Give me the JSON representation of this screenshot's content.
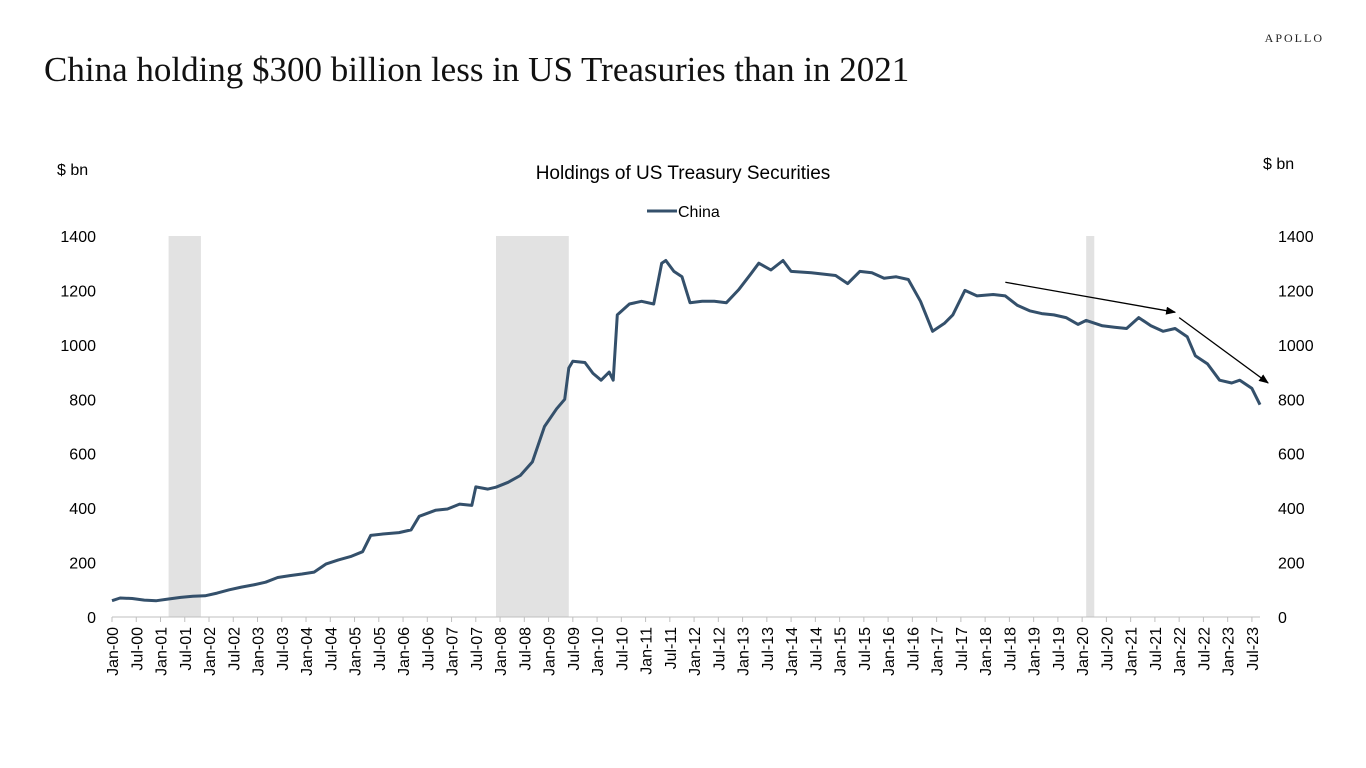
{
  "brand": "APOLLO",
  "headline": "China holding $300 billion less in US Treasuries than in 2021",
  "colors": {
    "series": "#34506b",
    "recession": "#e2e2e2",
    "axis": "#bfbfbf",
    "arrow": "#000000"
  },
  "chart_data": {
    "type": "line",
    "title": "Holdings of US Treasury Securities",
    "ylabel_left": "$ bn",
    "ylabel_right": "$ bn",
    "ylim": [
      0,
      1400
    ],
    "yticks": [
      0,
      200,
      400,
      600,
      800,
      1000,
      1200,
      1400
    ],
    "legend_position": "top-center",
    "grid": false,
    "x_tick_labels": [
      "Jan-00",
      "Jul-00",
      "Jan-01",
      "Jul-01",
      "Jan-02",
      "Jul-02",
      "Jan-03",
      "Jul-03",
      "Jan-04",
      "Jul-04",
      "Jan-05",
      "Jul-05",
      "Jan-06",
      "Jul-06",
      "Jan-07",
      "Jul-07",
      "Jan-08",
      "Jul-08",
      "Jan-09",
      "Jul-09",
      "Jan-10",
      "Jul-10",
      "Jan-11",
      "Jul-11",
      "Jan-12",
      "Jul-12",
      "Jan-13",
      "Jul-13",
      "Jan-14",
      "Jul-14",
      "Jan-15",
      "Jul-15",
      "Jan-16",
      "Jul-16",
      "Jan-17",
      "Jul-17",
      "Jan-18",
      "Jul-18",
      "Jan-19",
      "Jul-19",
      "Jan-20",
      "Jul-20",
      "Jan-21",
      "Jul-21",
      "Jan-22",
      "Jul-22",
      "Jan-23",
      "Jul-23"
    ],
    "recession_bands": [
      {
        "start": "2001-03",
        "end": "2001-11"
      },
      {
        "start": "2007-12",
        "end": "2009-06"
      },
      {
        "start": "2020-02",
        "end": "2020-04"
      }
    ],
    "series": [
      {
        "name": "China",
        "points": [
          [
            "2000-01",
            60
          ],
          [
            "2000-03",
            70
          ],
          [
            "2000-06",
            68
          ],
          [
            "2000-09",
            62
          ],
          [
            "2000-12",
            60
          ],
          [
            "2001-03",
            66
          ],
          [
            "2001-06",
            72
          ],
          [
            "2001-09",
            76
          ],
          [
            "2001-12",
            78
          ],
          [
            "2002-03",
            88
          ],
          [
            "2002-06",
            100
          ],
          [
            "2002-09",
            110
          ],
          [
            "2002-12",
            118
          ],
          [
            "2003-03",
            128
          ],
          [
            "2003-06",
            145
          ],
          [
            "2003-09",
            152
          ],
          [
            "2003-12",
            158
          ],
          [
            "2004-03",
            165
          ],
          [
            "2004-06",
            195
          ],
          [
            "2004-09",
            210
          ],
          [
            "2004-12",
            222
          ],
          [
            "2005-03",
            240
          ],
          [
            "2005-05",
            300
          ],
          [
            "2005-08",
            305
          ],
          [
            "2005-12",
            310
          ],
          [
            "2006-03",
            320
          ],
          [
            "2006-05",
            370
          ],
          [
            "2006-09",
            392
          ],
          [
            "2006-12",
            397
          ],
          [
            "2007-03",
            415
          ],
          [
            "2007-06",
            410
          ],
          [
            "2007-07",
            478
          ],
          [
            "2007-10",
            470
          ],
          [
            "2007-12",
            477
          ],
          [
            "2008-03",
            495
          ],
          [
            "2008-06",
            520
          ],
          [
            "2008-09",
            570
          ],
          [
            "2008-12",
            700
          ],
          [
            "2009-03",
            765
          ],
          [
            "2009-05",
            800
          ],
          [
            "2009-06",
            915
          ],
          [
            "2009-07",
            940
          ],
          [
            "2009-10",
            935
          ],
          [
            "2009-12",
            895
          ],
          [
            "2010-02",
            870
          ],
          [
            "2010-04",
            900
          ],
          [
            "2010-05",
            870
          ],
          [
            "2010-06",
            1110
          ],
          [
            "2010-09",
            1150
          ],
          [
            "2010-12",
            1160
          ],
          [
            "2011-03",
            1150
          ],
          [
            "2011-05",
            1300
          ],
          [
            "2011-06",
            1310
          ],
          [
            "2011-08",
            1270
          ],
          [
            "2011-10",
            1250
          ],
          [
            "2011-12",
            1155
          ],
          [
            "2012-03",
            1160
          ],
          [
            "2012-06",
            1160
          ],
          [
            "2012-09",
            1155
          ],
          [
            "2012-12",
            1202
          ],
          [
            "2013-03",
            1260
          ],
          [
            "2013-05",
            1300
          ],
          [
            "2013-08",
            1275
          ],
          [
            "2013-11",
            1310
          ],
          [
            "2014-01",
            1270
          ],
          [
            "2014-06",
            1265
          ],
          [
            "2014-12",
            1255
          ],
          [
            "2015-03",
            1225
          ],
          [
            "2015-06",
            1270
          ],
          [
            "2015-09",
            1265
          ],
          [
            "2015-12",
            1245
          ],
          [
            "2016-03",
            1250
          ],
          [
            "2016-06",
            1240
          ],
          [
            "2016-09",
            1160
          ],
          [
            "2016-12",
            1050
          ],
          [
            "2017-03",
            1080
          ],
          [
            "2017-05",
            1110
          ],
          [
            "2017-08",
            1200
          ],
          [
            "2017-11",
            1180
          ],
          [
            "2018-03",
            1185
          ],
          [
            "2018-06",
            1180
          ],
          [
            "2018-09",
            1145
          ],
          [
            "2018-12",
            1125
          ],
          [
            "2019-03",
            1115
          ],
          [
            "2019-06",
            1110
          ],
          [
            "2019-09",
            1100
          ],
          [
            "2019-12",
            1075
          ],
          [
            "2020-02",
            1090
          ],
          [
            "2020-06",
            1070
          ],
          [
            "2020-09",
            1065
          ],
          [
            "2020-12",
            1060
          ],
          [
            "2021-03",
            1100
          ],
          [
            "2021-06",
            1070
          ],
          [
            "2021-09",
            1050
          ],
          [
            "2021-12",
            1060
          ],
          [
            "2022-03",
            1030
          ],
          [
            "2022-05",
            960
          ],
          [
            "2022-08",
            930
          ],
          [
            "2022-11",
            870
          ],
          [
            "2023-02",
            860
          ],
          [
            "2023-04",
            870
          ],
          [
            "2023-07",
            840
          ],
          [
            "2023-09",
            780
          ]
        ]
      }
    ],
    "annotations": [
      {
        "type": "arrow",
        "from": [
          "2018-06",
          1230
        ],
        "to": [
          "2021-12",
          1120
        ]
      },
      {
        "type": "arrow",
        "from": [
          "2022-01",
          1100
        ],
        "to": [
          "2023-11",
          860
        ]
      }
    ]
  }
}
